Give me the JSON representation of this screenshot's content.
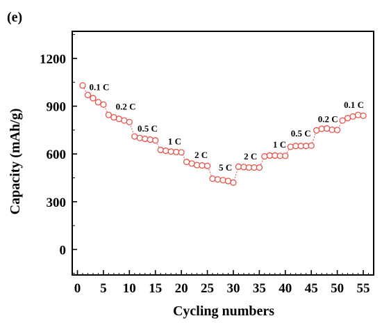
{
  "panel_label": "(e)",
  "chart_data": {
    "type": "scatter",
    "title": "",
    "xlabel": "Cycling numbers",
    "ylabel": "Capacity (mAh/g)",
    "xlim": [
      -1,
      57
    ],
    "ylim": [
      -160,
      1370
    ],
    "xticks": [
      0,
      5,
      10,
      15,
      20,
      25,
      30,
      35,
      40,
      45,
      50,
      55
    ],
    "yticks": [
      0,
      300,
      600,
      900,
      1200
    ],
    "marker": "open-circle",
    "line": "dotted",
    "color": "#e8524a",
    "grid": false,
    "series": [
      {
        "x": [
          1,
          2,
          3,
          4,
          5,
          6,
          7,
          8,
          9,
          10,
          11,
          12,
          13,
          14,
          15,
          16,
          17,
          18,
          19,
          20,
          21,
          22,
          23,
          24,
          25,
          26,
          27,
          28,
          29,
          30,
          31,
          32,
          33,
          34,
          35,
          36,
          37,
          38,
          39,
          40,
          41,
          42,
          43,
          44,
          45,
          46,
          47,
          48,
          49,
          50,
          51,
          52,
          53,
          54,
          55
        ],
        "y": [
          1030,
          970,
          950,
          925,
          910,
          845,
          830,
          820,
          810,
          800,
          710,
          700,
          695,
          690,
          685,
          625,
          620,
          615,
          612,
          610,
          550,
          540,
          530,
          528,
          525,
          445,
          440,
          435,
          430,
          420,
          520,
          518,
          515,
          515,
          515,
          585,
          590,
          590,
          588,
          588,
          645,
          650,
          650,
          650,
          652,
          748,
          758,
          760,
          752,
          750,
          810,
          825,
          835,
          845,
          840
        ]
      }
    ],
    "annotations": [
      {
        "text": "0.1 C",
        "x": 4.2,
        "y": 1000
      },
      {
        "text": "0.2 C",
        "x": 9.3,
        "y": 878
      },
      {
        "text": "0.5 C",
        "x": 13.5,
        "y": 740
      },
      {
        "text": "1 C",
        "x": 18.7,
        "y": 660
      },
      {
        "text": "2 C",
        "x": 23.8,
        "y": 575
      },
      {
        "text": "5 C",
        "x": 28.5,
        "y": 495
      },
      {
        "text": "2 C",
        "x": 33.3,
        "y": 565
      },
      {
        "text": "1 C",
        "x": 38.9,
        "y": 640
      },
      {
        "text": "0.5 C",
        "x": 43.0,
        "y": 710
      },
      {
        "text": "0.2 C",
        "x": 48.2,
        "y": 800
      },
      {
        "text": "0.1 C",
        "x": 53.2,
        "y": 890
      }
    ]
  }
}
